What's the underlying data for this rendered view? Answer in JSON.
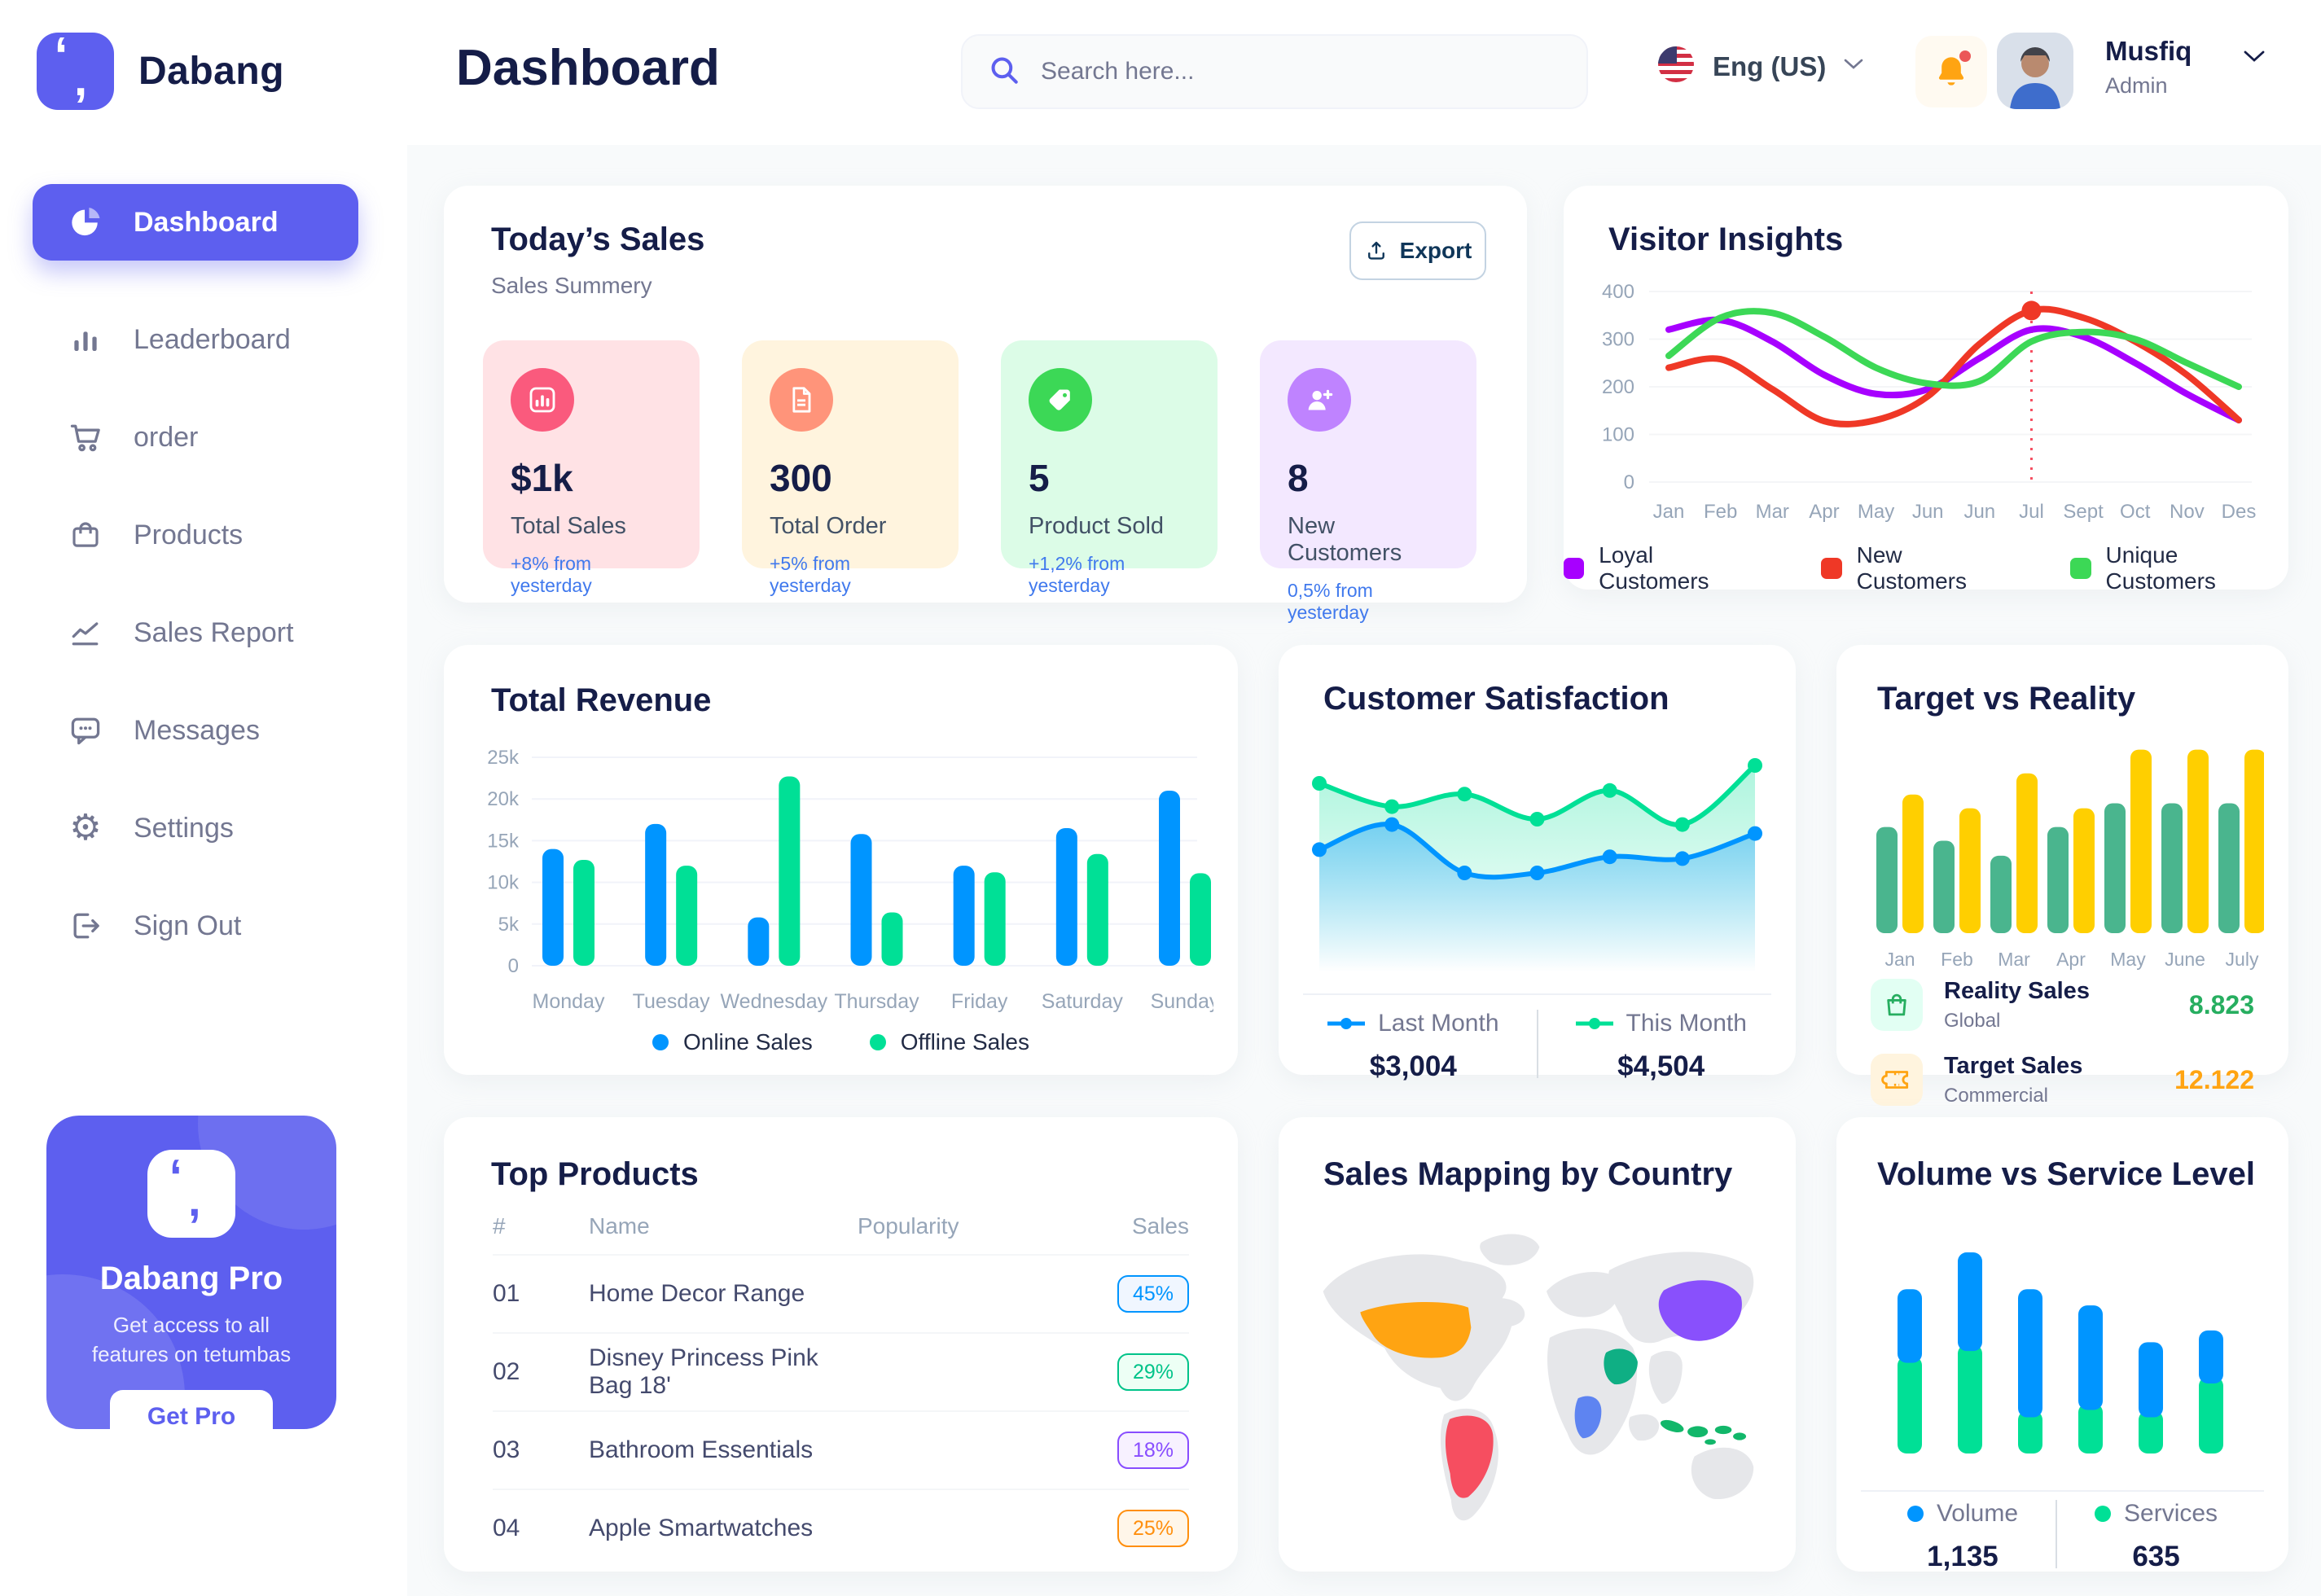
{
  "app": {
    "brand": "Dabang"
  },
  "header": {
    "title": "Dashboard",
    "search_placeholder": "Search here...",
    "language": "Eng (US)",
    "user": {
      "name": "Musfiq",
      "role": "Admin"
    }
  },
  "sidebar": {
    "items": [
      {
        "label": "Dashboard",
        "icon": "pie",
        "active": true
      },
      {
        "label": "Leaderboard",
        "icon": "bars",
        "active": false
      },
      {
        "label": "order",
        "icon": "cart",
        "active": false
      },
      {
        "label": "Products",
        "icon": "bag",
        "active": false
      },
      {
        "label": "Sales Report",
        "icon": "chart",
        "active": false
      },
      {
        "label": "Messages",
        "icon": "chat",
        "active": false
      },
      {
        "label": "Settings",
        "icon": "gear",
        "active": false
      },
      {
        "label": "Sign Out",
        "icon": "signout",
        "active": false
      }
    ],
    "pro": {
      "title": "Dabang Pro",
      "desc": "Get access to all\nfeatures on tetumbas",
      "button": "Get Pro"
    }
  },
  "today_sales": {
    "title": "Today’s Sales",
    "subtitle": "Sales Summery",
    "export_label": "Export",
    "stats": [
      {
        "icon": "chart",
        "bg": "#FFE2E5",
        "circle": "#FA5A7D",
        "value": "$1k",
        "label": "Total Sales",
        "delta": "+8% from yesterday"
      },
      {
        "icon": "file",
        "bg": "#FFF4DE",
        "circle": "#FF947A",
        "value": "300",
        "label": "Total Order",
        "delta": "+5% from yesterday"
      },
      {
        "icon": "tag",
        "bg": "#DCFCE7",
        "circle": "#3CD856",
        "value": "5",
        "label": "Product Sold",
        "delta": "+1,2% from yesterday"
      },
      {
        "icon": "user",
        "bg": "#F3E8FF",
        "circle": "#BF83FF",
        "value": "8",
        "label": "New Customers",
        "delta": "0,5% from yesterday"
      }
    ]
  },
  "charts": {
    "visitor": {
      "type": "line",
      "title": "Visitor Insights",
      "x": [
        "Jan",
        "Feb",
        "Mar",
        "Apr",
        "May",
        "Jun",
        "Jun",
        "Jul",
        "Sept",
        "Oct",
        "Nov",
        "Des"
      ],
      "yticks": [
        0,
        100,
        200,
        300,
        400
      ],
      "ylim": [
        0,
        400
      ],
      "highlight_index": 7,
      "series": [
        {
          "name": "Loyal Customers",
          "color": "#A700FF",
          "values": [
            320,
            340,
            295,
            225,
            185,
            195,
            260,
            320,
            305,
            250,
            185,
            130
          ]
        },
        {
          "name": "New Customers",
          "color": "#EF3826",
          "values": [
            240,
            258,
            195,
            128,
            130,
            180,
            290,
            360,
            345,
            295,
            225,
            130
          ]
        },
        {
          "name": "Unique Customers",
          "color": "#3CD856",
          "values": [
            265,
            345,
            355,
            305,
            240,
            207,
            212,
            295,
            315,
            300,
            250,
            200
          ]
        }
      ]
    },
    "revenue": {
      "type": "bar",
      "title": "Total Revenue",
      "categories": [
        "Monday",
        "Tuesday",
        "Wednesday",
        "Thursday",
        "Friday",
        "Saturday",
        "Sunday"
      ],
      "yticks": [
        "0",
        "5k",
        "10k",
        "15k",
        "20k",
        "25k"
      ],
      "ylim": [
        0,
        25
      ],
      "series": [
        {
          "name": "Online Sales",
          "color": "#0095FF",
          "values": [
            14,
            17,
            5.8,
            15.8,
            12,
            16.5,
            21
          ]
        },
        {
          "name": "Offline Sales",
          "color": "#00E096",
          "values": [
            12.7,
            12,
            22.7,
            6.4,
            11.2,
            13.4,
            11.1
          ]
        }
      ]
    },
    "satisfaction": {
      "type": "area",
      "title": "Customer Satisfaction",
      "series": [
        {
          "name": "Last Month",
          "color": "#0095FF",
          "display_value": "$3,004",
          "values": [
            48,
            62,
            35,
            35,
            44,
            43,
            57
          ]
        },
        {
          "name": "This Month",
          "color": "#00E096",
          "display_value": "$4,504",
          "values": [
            85,
            72,
            79,
            65,
            81,
            62,
            95
          ]
        }
      ],
      "ylim": [
        0,
        100
      ]
    },
    "target": {
      "type": "bar",
      "title": "Target vs Reality",
      "categories": [
        "Jan",
        "Feb",
        "Mar",
        "Apr",
        "May",
        "June",
        "July"
      ],
      "ylim": [
        0,
        15
      ],
      "series": [
        {
          "name": "Reality Sales",
          "color": "#4AB58E",
          "values": [
            8.5,
            7.4,
            6.2,
            8.5,
            10.4,
            10.4,
            10.4
          ]
        },
        {
          "name": "Target Sales",
          "color": "#FFCF00",
          "values": [
            11.1,
            10,
            12.8,
            10,
            14.7,
            14.7,
            14.7
          ]
        }
      ],
      "legend": [
        {
          "icon": "bag",
          "icon_bg": "#E2FFF3",
          "icon_color": "#27AE60",
          "name": "Reality Sales",
          "sub": "Global",
          "value": "8.823",
          "value_color": "#27AE60"
        },
        {
          "icon": "ticket",
          "icon_bg": "#FFF4DE",
          "icon_color": "#FFA412",
          "name": "Target Sales",
          "sub": "Commercial",
          "value": "12.122",
          "value_color": "#FFA412"
        }
      ]
    },
    "volume": {
      "type": "stacked-bar",
      "title": "Volume vs Service Level",
      "series": [
        {
          "name": "Volume",
          "color": "#0095FF",
          "display_value": "1,135",
          "values": [
            250,
            335,
            435,
            355,
            255,
            180
          ]
        },
        {
          "name": "Services",
          "color": "#00E096",
          "display_value": "635",
          "values": [
            330,
            370,
            145,
            170,
            145,
            260
          ]
        }
      ]
    }
  },
  "top_products": {
    "title": "Top Products",
    "headers": [
      "#",
      "Name",
      "Popularity",
      "Sales"
    ],
    "rows": [
      {
        "num": "01",
        "name": "Home Decor Range",
        "sales": "45%",
        "fill_pct": 0.78,
        "bar": "#0095FF",
        "track": "#CDE4FF",
        "badge_bg": "#F0F6FF",
        "badge_color": "#0095FF"
      },
      {
        "num": "02",
        "name": "Disney Princess Pink Bag 18'",
        "sales": "29%",
        "fill_pct": 0.62,
        "bar": "#00E096",
        "track": "#8CEFD0",
        "badge_bg": "#EDFFF5",
        "badge_color": "#00C389"
      },
      {
        "num": "03",
        "name": "Bathroom Essentials",
        "sales": "18%",
        "fill_pct": 0.56,
        "bar": "#884DFF",
        "track": "#C9A9FA",
        "badge_bg": "#F7F1FF",
        "badge_color": "#884DFF"
      },
      {
        "num": "04",
        "name": "Apple Smartwatches",
        "sales": "25%",
        "fill_pct": 0.33,
        "bar": "#FF8F0D",
        "track": "#FFD8A6",
        "badge_bg": "#FFF6E9",
        "badge_color": "#FF8F0D"
      }
    ]
  },
  "sales_map": {
    "title": "Sales Mapping by Country",
    "land_color": "#E6E7EA",
    "countries": [
      {
        "name": "United States",
        "color": "#FFA412"
      },
      {
        "name": "Brazil",
        "color": "#F64E60"
      },
      {
        "name": "DR Congo",
        "color": "#5E84F1"
      },
      {
        "name": "Saudi Arabia",
        "color": "#0FAF84"
      },
      {
        "name": "China",
        "color": "#8950FC"
      },
      {
        "name": "Indonesia",
        "color": "#12B76A"
      }
    ]
  }
}
